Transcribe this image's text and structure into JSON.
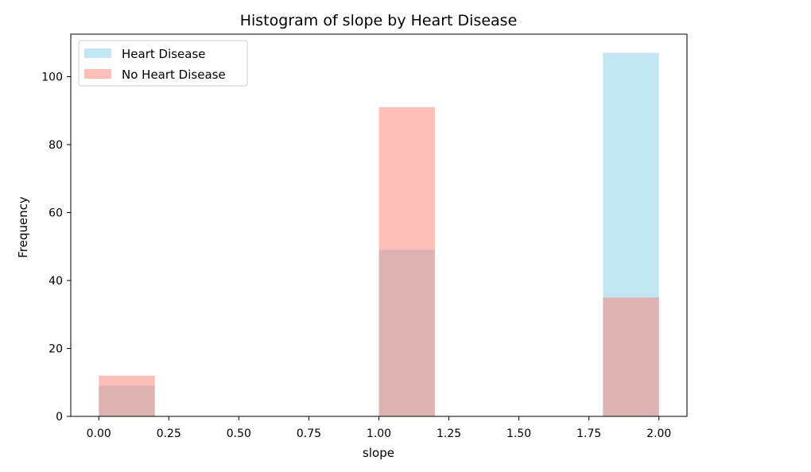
{
  "chart_data": {
    "type": "bar",
    "title": "Histogram of slope by Heart Disease",
    "xlabel": "slope",
    "ylabel": "Frequency",
    "xlim": [
      -0.1,
      2.1
    ],
    "ylim": [
      0,
      112.5
    ],
    "bin_edges": [
      0.0,
      0.2,
      0.4,
      0.6,
      0.8,
      1.0,
      1.2,
      1.4,
      1.6,
      1.8,
      2.0
    ],
    "x_ticks": [
      0.0,
      0.25,
      0.5,
      0.75,
      1.0,
      1.25,
      1.5,
      1.75,
      2.0
    ],
    "x_tick_labels": [
      "0.00",
      "0.25",
      "0.50",
      "0.75",
      "1.00",
      "1.25",
      "1.50",
      "1.75",
      "2.00"
    ],
    "y_ticks": [
      0,
      20,
      40,
      60,
      80,
      100
    ],
    "y_tick_labels": [
      "0",
      "20",
      "40",
      "60",
      "80",
      "100"
    ],
    "grid": false,
    "legend_position": "top-left",
    "series": [
      {
        "name": "Heart Disease",
        "color": "#87ceeb",
        "alpha": 0.5,
        "values": [
          9,
          0,
          0,
          0,
          0,
          49,
          0,
          0,
          0,
          107
        ]
      },
      {
        "name": "No Heart Disease",
        "color": "#fa8072",
        "alpha": 0.5,
        "values": [
          12,
          0,
          0,
          0,
          0,
          91,
          0,
          0,
          0,
          35
        ]
      }
    ]
  }
}
